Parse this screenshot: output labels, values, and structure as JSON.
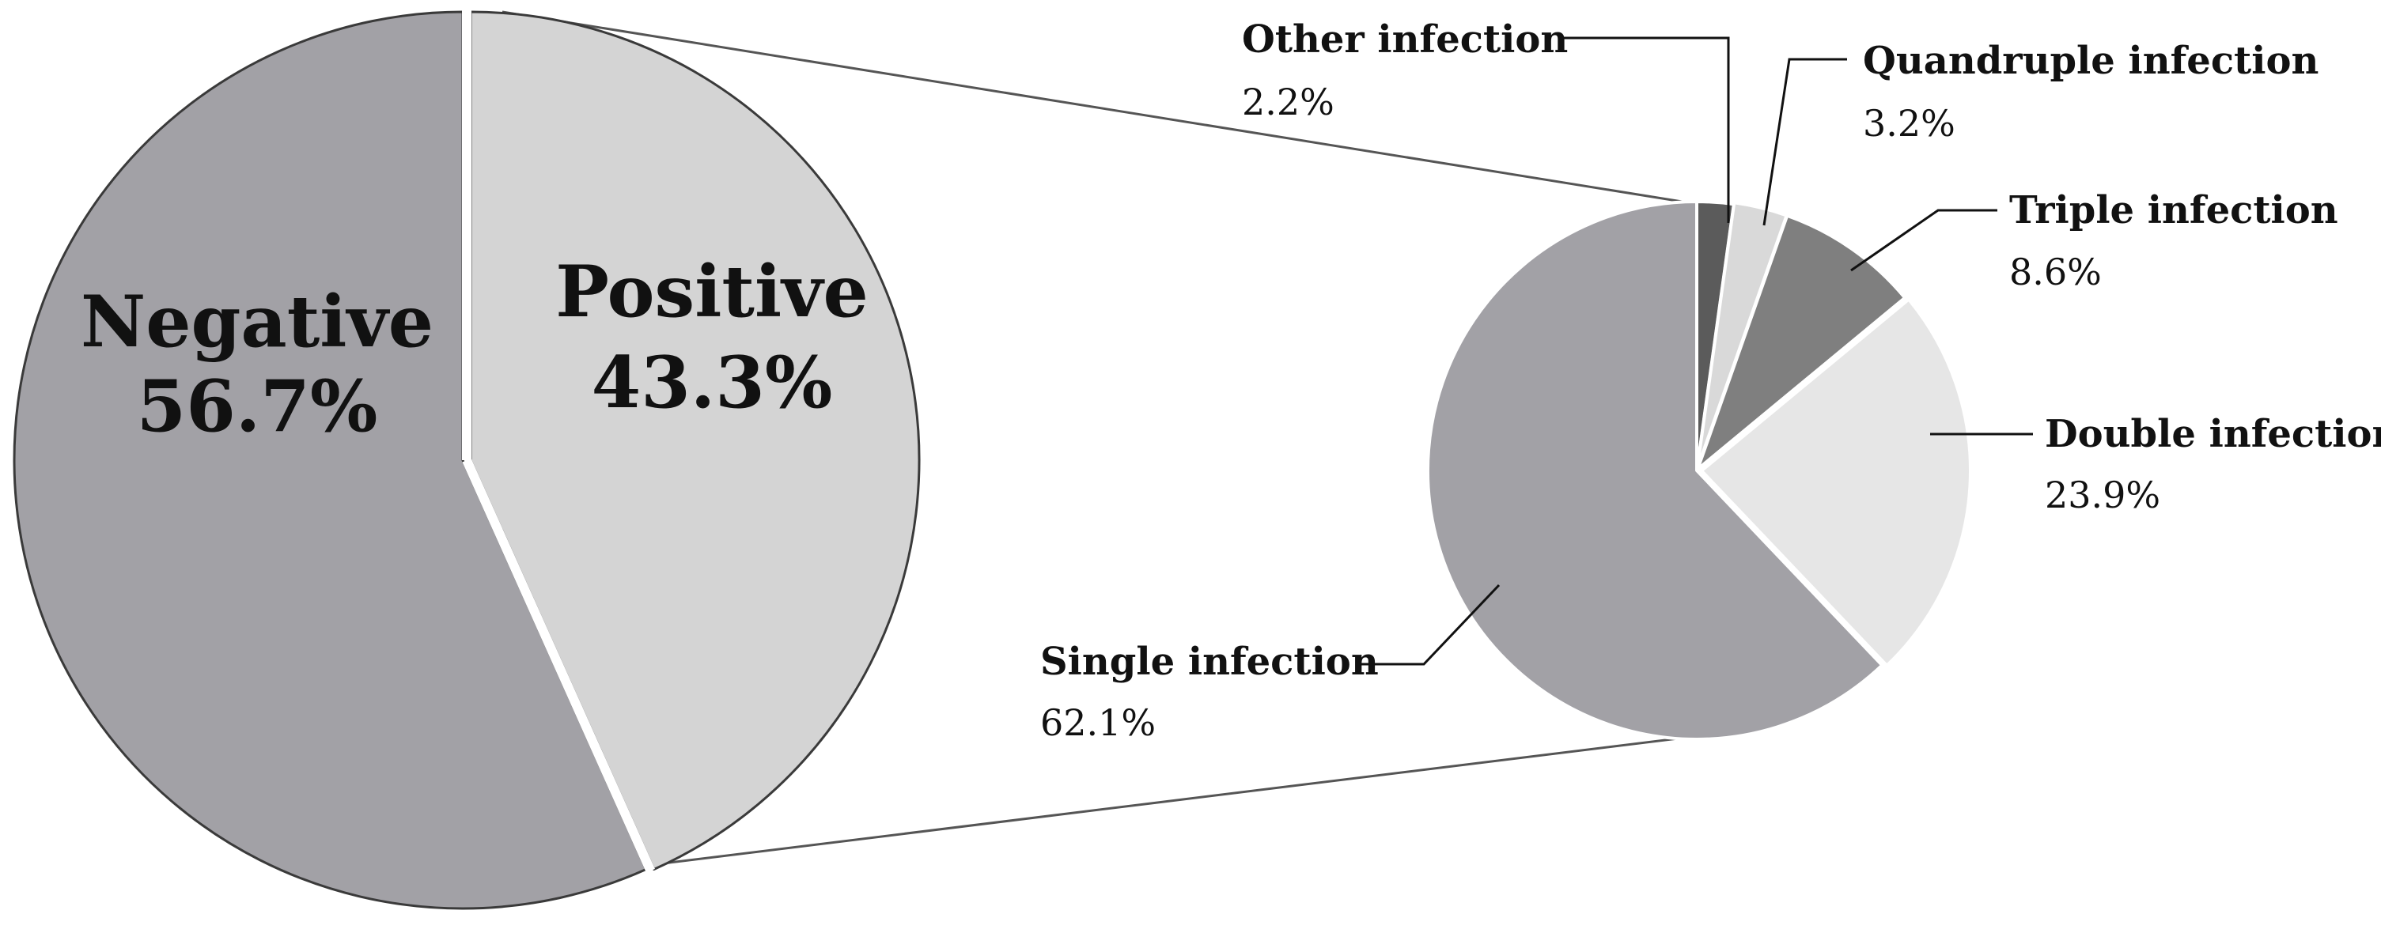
{
  "chart_data": [
    {
      "type": "pie",
      "title": "",
      "slices": [
        {
          "label": "Negative",
          "value": 56.7,
          "value_text": "56.7%",
          "color": "#a2a1a6"
        },
        {
          "label": "Positive",
          "value": 43.3,
          "value_text": "43.3%",
          "color": "#d4d4d4"
        }
      ]
    },
    {
      "type": "pie",
      "title": "",
      "slices": [
        {
          "label": "Other infection",
          "value": 2.2,
          "value_text": "2.2%",
          "color": "#5b5b5b"
        },
        {
          "label": "Quandruple infection",
          "value": 3.2,
          "value_text": "3.2%",
          "color": "#d9d9d9"
        },
        {
          "label": "Triple infection",
          "value": 8.6,
          "value_text": "8.6%",
          "color": "#7f7f7f"
        },
        {
          "label": "Double infection",
          "value": 23.9,
          "value_text": "23.9%",
          "color": "#e6e6e6"
        },
        {
          "label": "Single infection",
          "value": 62.1,
          "value_text": "62.1%",
          "color": "#a2a1a6"
        }
      ]
    }
  ]
}
